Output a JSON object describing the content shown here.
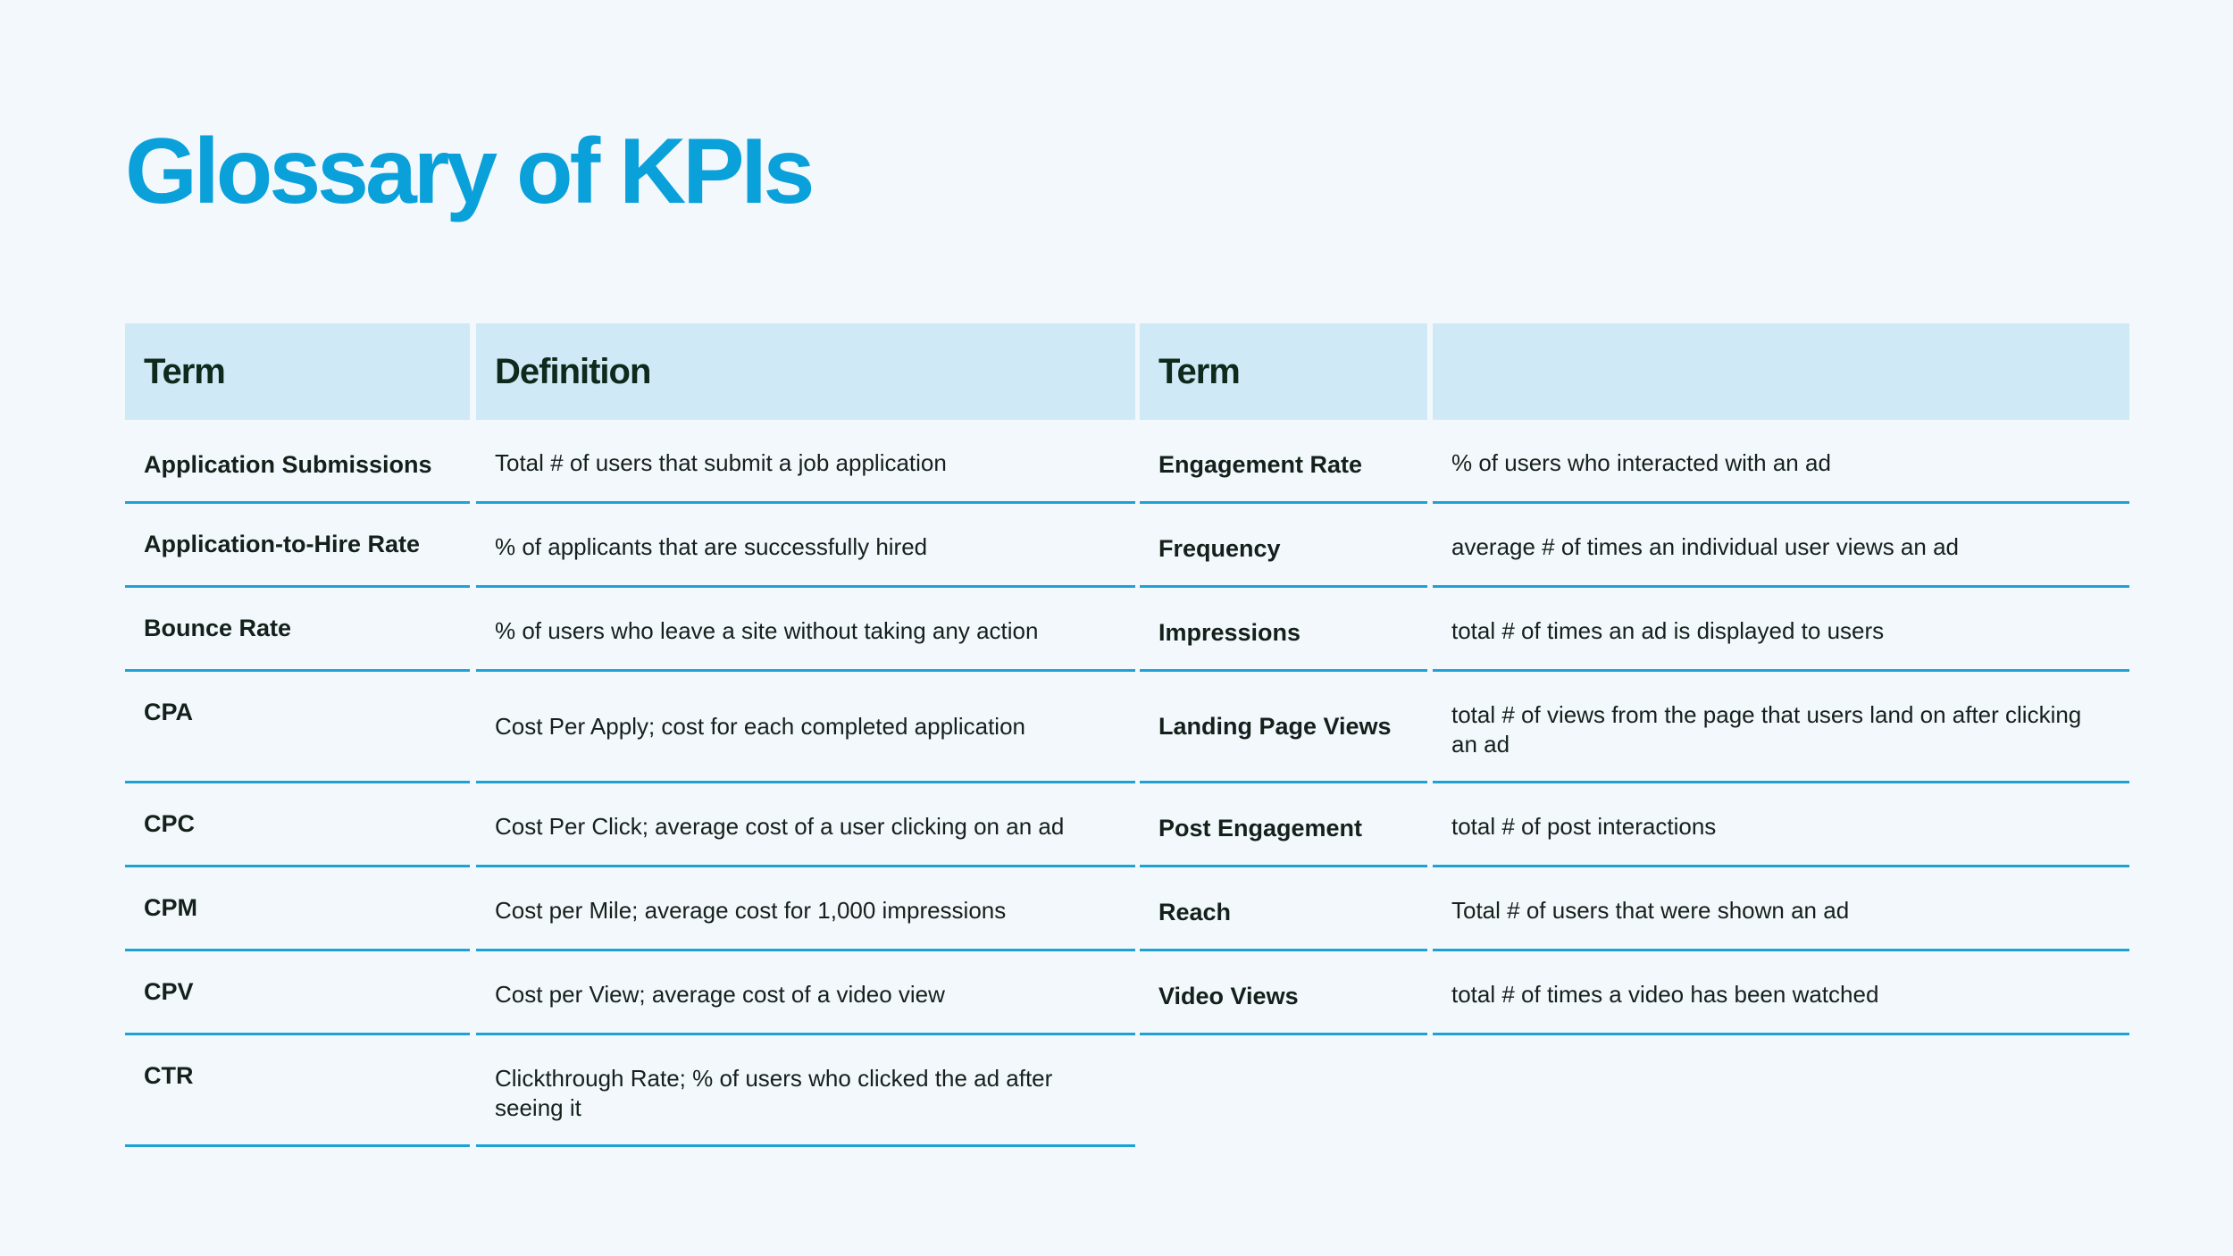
{
  "title": "Glossary of KPIs",
  "left_table": {
    "headers": {
      "term": "Term",
      "definition": "Definition"
    },
    "rows": [
      {
        "term": "Application Submissions",
        "definition": "Total # of users that submit a job application"
      },
      {
        "term": "Application-to-Hire Rate",
        "definition": "% of applicants that are successfully hired"
      },
      {
        "term": "Bounce Rate",
        "definition": "% of users who leave a site without taking any action"
      },
      {
        "term": "CPA",
        "definition": "Cost Per Apply; cost for each completed application"
      },
      {
        "term": "CPC",
        "definition": "Cost Per Click; average cost of a user clicking on an ad"
      },
      {
        "term": "CPM",
        "definition": "Cost per Mile; average cost for 1,000 impressions"
      },
      {
        "term": "CPV",
        "definition": "Cost per View; average cost of a video view"
      },
      {
        "term": "CTR",
        "definition": "Clickthrough Rate; % of users who clicked the ad after seeing it"
      }
    ]
  },
  "right_table": {
    "headers": {
      "term": "Term",
      "definition": ""
    },
    "rows": [
      {
        "term": "Engagement Rate",
        "definition": "% of users who interacted with an ad"
      },
      {
        "term": "Frequency",
        "definition": "average # of times an individual user views an ad"
      },
      {
        "term": "Impressions",
        "definition": "total # of times an ad is displayed to users"
      },
      {
        "term": "Landing Page Views",
        "definition": "total # of views from the page that users land on after clicking an ad"
      },
      {
        "term": "Post Engagement",
        "definition": "total # of post interactions"
      },
      {
        "term": "Reach",
        "definition": "Total # of users that were shown an ad"
      },
      {
        "term": "Video Views",
        "definition": "total # of times a video has been watched"
      }
    ]
  }
}
